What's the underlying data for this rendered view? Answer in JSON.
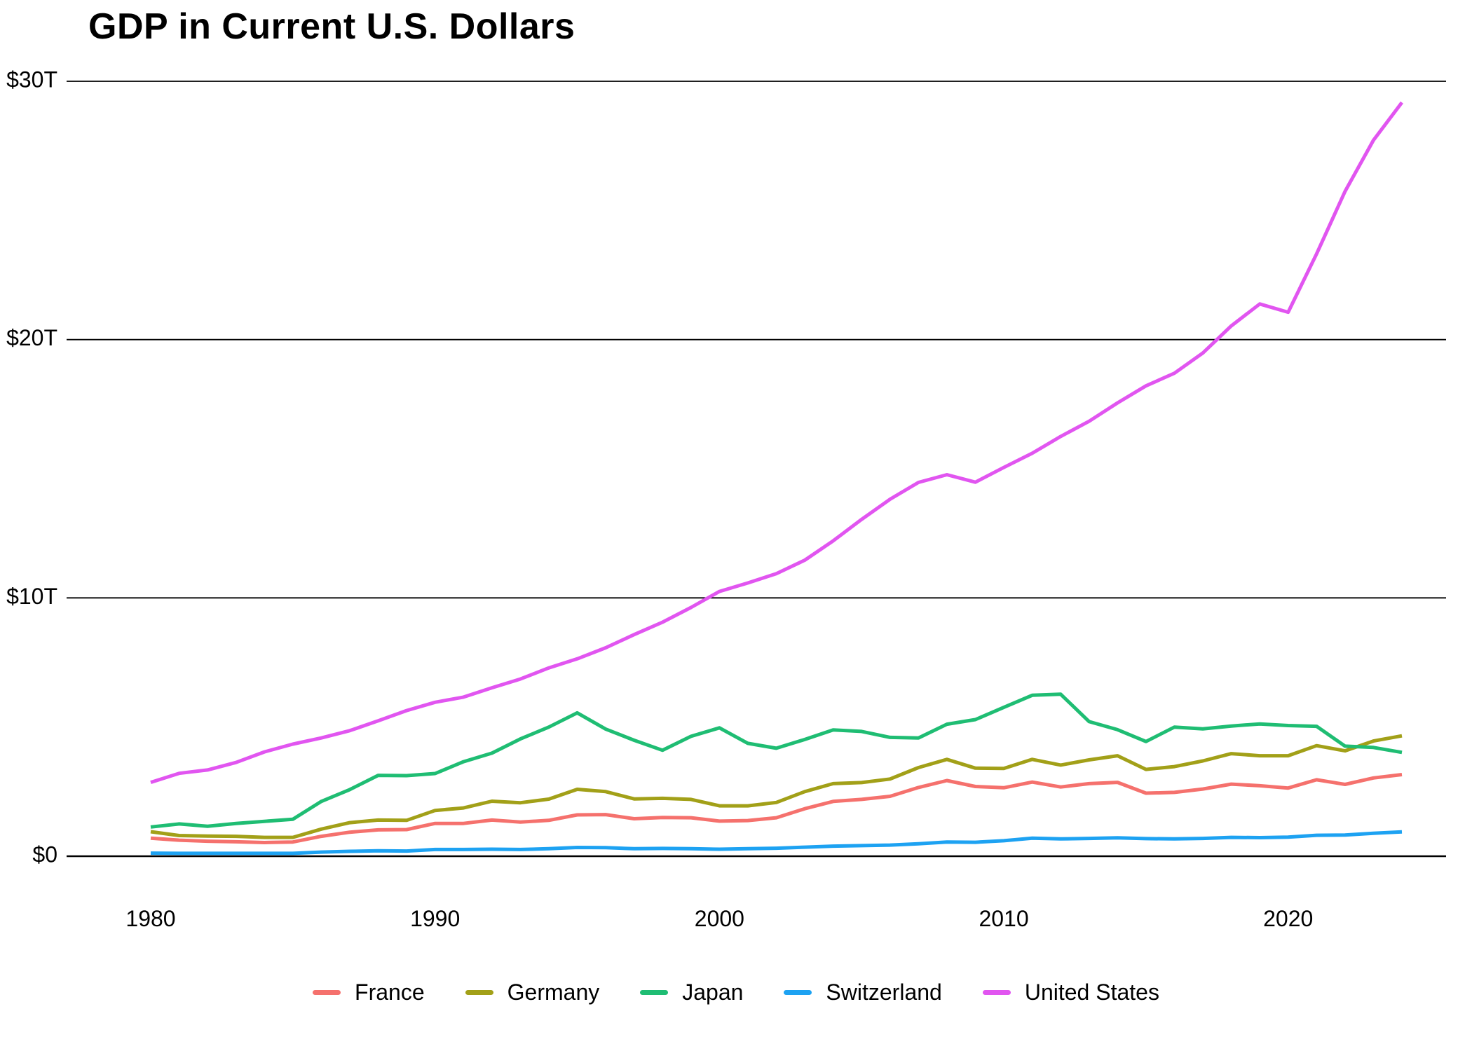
{
  "title": "GDP in Current U.S. Dollars",
  "chart_data": {
    "type": "line",
    "title": "GDP in Current U.S. Dollars",
    "x_label": "",
    "y_label": "",
    "units": "trillions of current U.S. dollars",
    "xlim": [
      1980,
      2024
    ],
    "ylim": [
      0,
      30
    ],
    "grid": "horizontal",
    "legend_position": "bottom",
    "x": [
      1980,
      1981,
      1982,
      1983,
      1984,
      1985,
      1986,
      1987,
      1988,
      1989,
      1990,
      1991,
      1992,
      1993,
      1994,
      1995,
      1996,
      1997,
      1998,
      1999,
      2000,
      2001,
      2002,
      2003,
      2004,
      2005,
      2006,
      2007,
      2008,
      2009,
      2010,
      2011,
      2012,
      2013,
      2014,
      2015,
      2016,
      2017,
      2018,
      2019,
      2020,
      2021,
      2022,
      2023,
      2024
    ],
    "x_ticks": [
      {
        "value": 1980,
        "label": "1980"
      },
      {
        "value": 1990,
        "label": "1990"
      },
      {
        "value": 2000,
        "label": "2000"
      },
      {
        "value": 2010,
        "label": "2010"
      },
      {
        "value": 2020,
        "label": "2020"
      }
    ],
    "y_ticks": [
      {
        "value": 0,
        "label": "$0"
      },
      {
        "value": 10,
        "label": "$10T"
      },
      {
        "value": 20,
        "label": "$20T"
      },
      {
        "value": 30,
        "label": "$30T"
      }
    ],
    "series": [
      {
        "name": "France",
        "color": "#f5716d",
        "values": [
          0.7,
          0.62,
          0.58,
          0.56,
          0.53,
          0.55,
          0.77,
          0.93,
          1.02,
          1.03,
          1.27,
          1.27,
          1.4,
          1.32,
          1.39,
          1.6,
          1.61,
          1.45,
          1.5,
          1.49,
          1.36,
          1.38,
          1.49,
          1.84,
          2.12,
          2.2,
          2.32,
          2.66,
          2.93,
          2.7,
          2.65,
          2.87,
          2.68,
          2.81,
          2.86,
          2.44,
          2.47,
          2.6,
          2.79,
          2.73,
          2.64,
          2.96,
          2.78,
          3.03,
          3.16
        ]
      },
      {
        "name": "Germany",
        "color": "#a2a018",
        "values": [
          0.95,
          0.8,
          0.78,
          0.77,
          0.73,
          0.73,
          1.05,
          1.3,
          1.4,
          1.39,
          1.77,
          1.87,
          2.13,
          2.07,
          2.21,
          2.59,
          2.5,
          2.22,
          2.24,
          2.2,
          1.95,
          1.95,
          2.08,
          2.5,
          2.81,
          2.85,
          2.99,
          3.43,
          3.75,
          3.41,
          3.4,
          3.75,
          3.53,
          3.73,
          3.89,
          3.36,
          3.47,
          3.69,
          3.97,
          3.89,
          3.89,
          4.28,
          4.08,
          4.46,
          4.66
        ]
      },
      {
        "name": "Japan",
        "color": "#1fbd73",
        "values": [
          1.13,
          1.25,
          1.16,
          1.27,
          1.35,
          1.43,
          2.12,
          2.58,
          3.13,
          3.12,
          3.2,
          3.66,
          3.99,
          4.54,
          5.0,
          5.55,
          4.92,
          4.49,
          4.1,
          4.64,
          4.97,
          4.37,
          4.18,
          4.52,
          4.89,
          4.83,
          4.6,
          4.58,
          5.11,
          5.29,
          5.76,
          6.23,
          6.27,
          5.21,
          4.9,
          4.44,
          5.0,
          4.93,
          5.04,
          5.12,
          5.06,
          5.03,
          4.26,
          4.21,
          4.02
        ]
      },
      {
        "name": "Switzerland",
        "color": "#1da2f2",
        "values": [
          0.12,
          0.11,
          0.11,
          0.11,
          0.11,
          0.11,
          0.16,
          0.19,
          0.21,
          0.2,
          0.26,
          0.26,
          0.27,
          0.26,
          0.29,
          0.34,
          0.33,
          0.29,
          0.3,
          0.29,
          0.27,
          0.29,
          0.31,
          0.35,
          0.39,
          0.41,
          0.43,
          0.48,
          0.55,
          0.54,
          0.6,
          0.7,
          0.67,
          0.69,
          0.71,
          0.68,
          0.67,
          0.69,
          0.73,
          0.72,
          0.74,
          0.81,
          0.82,
          0.89,
          0.94
        ]
      },
      {
        "name": "United States",
        "color": "#e155f0",
        "values": [
          2.86,
          3.21,
          3.34,
          3.63,
          4.04,
          4.34,
          4.58,
          4.86,
          5.24,
          5.64,
          5.96,
          6.16,
          6.52,
          6.86,
          7.29,
          7.64,
          8.07,
          8.58,
          9.06,
          9.63,
          10.25,
          10.58,
          10.94,
          11.46,
          12.21,
          13.04,
          13.82,
          14.47,
          14.77,
          14.48,
          15.05,
          15.6,
          16.25,
          16.84,
          17.55,
          18.21,
          18.7,
          19.48,
          20.53,
          21.38,
          21.06,
          23.32,
          25.74,
          27.72,
          29.18
        ]
      }
    ]
  },
  "style": {
    "grid_color": "#000000",
    "text_color": "#000000",
    "background": "#ffffff"
  }
}
